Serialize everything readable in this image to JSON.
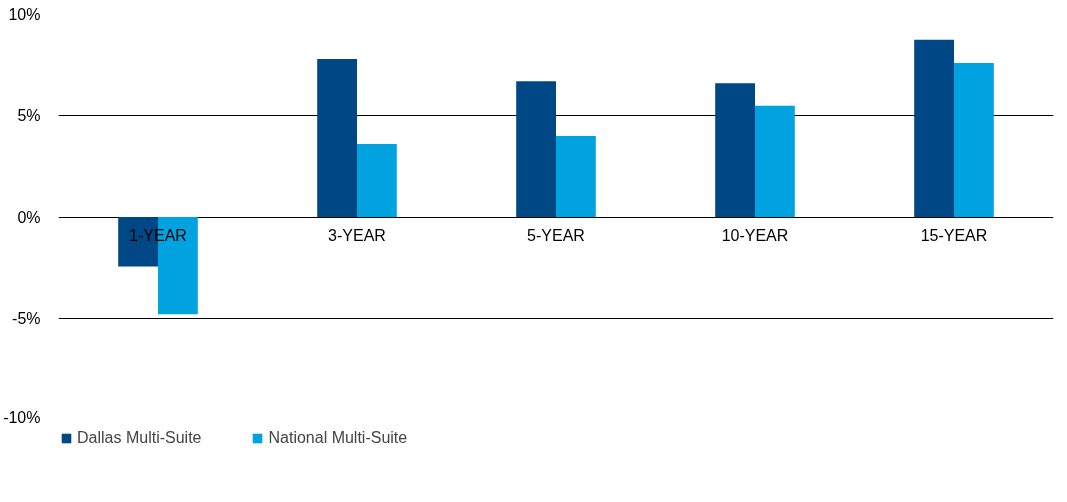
{
  "chart_data": {
    "type": "bar",
    "categories": [
      "1-YEAR",
      "3-YEAR",
      "5-YEAR",
      "10-YEAR",
      "15-YEAR"
    ],
    "series": [
      {
        "name": "Dallas Multi-Suite",
        "color": "#004785",
        "values": [
          -2.45,
          7.8,
          6.7,
          6.6,
          8.75
        ]
      },
      {
        "name": "National Multi-Suite",
        "color": "#00a3e0",
        "values": [
          -4.8,
          3.6,
          4.0,
          5.5,
          7.6
        ]
      }
    ],
    "ylim": [
      -10,
      10
    ],
    "yticks": [
      {
        "value": -10,
        "label": "-10%"
      },
      {
        "value": -5,
        "label": "-5%"
      },
      {
        "value": 0,
        "label": "0%"
      },
      {
        "value": 5,
        "label": "5%"
      },
      {
        "value": 10,
        "label": "10%"
      }
    ],
    "grid": "y",
    "legend": "bottom left"
  }
}
